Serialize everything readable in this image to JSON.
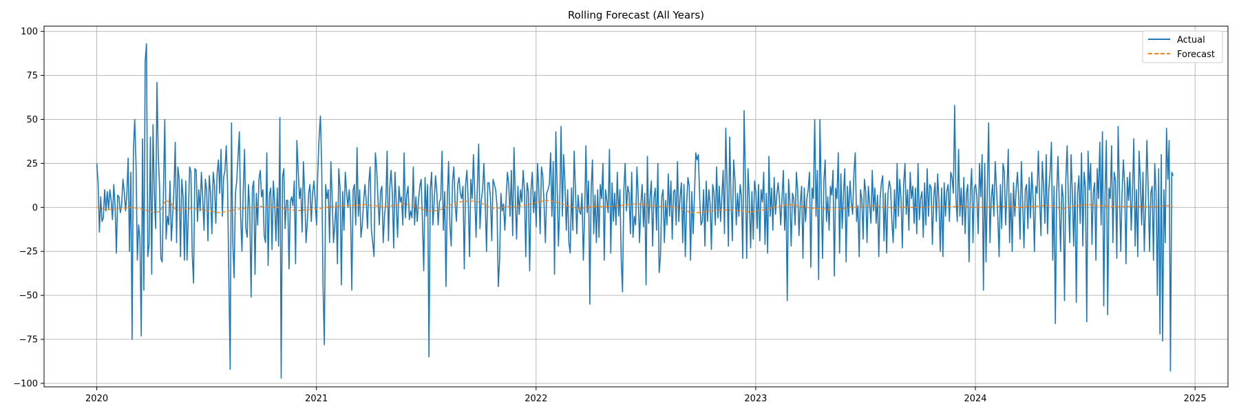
{
  "chart_data": {
    "type": "line",
    "title": "Rolling Forecast (All Years)",
    "xlabel": "",
    "ylabel": "",
    "x_range": [
      2019.76,
      2025.15
    ],
    "x_start": 2020.0,
    "x_end": 2024.9,
    "ylim": [
      -102,
      103
    ],
    "x_ticks": [
      {
        "value": 2020,
        "label": "2020"
      },
      {
        "value": 2021,
        "label": "2021"
      },
      {
        "value": 2022,
        "label": "2022"
      },
      {
        "value": 2023,
        "label": "2023"
      },
      {
        "value": 2024,
        "label": "2024"
      },
      {
        "value": 2025,
        "label": "2025"
      }
    ],
    "y_ticks": [
      {
        "value": 100,
        "label": "100"
      },
      {
        "value": 75,
        "label": "75"
      },
      {
        "value": 50,
        "label": "50"
      },
      {
        "value": 25,
        "label": "25"
      },
      {
        "value": 0,
        "label": "0"
      },
      {
        "value": -25,
        "label": "−25"
      },
      {
        "value": -50,
        "label": "−50"
      },
      {
        "value": -75,
        "label": "−75"
      },
      {
        "value": -100,
        "label": "−100"
      }
    ],
    "grid": true,
    "legend_position": "top-right",
    "series": [
      {
        "name": "Actual",
        "color": "#1f77b4",
        "style": "solid",
        "values": [
          25,
          14,
          -14,
          6,
          -8,
          -6,
          10,
          -2,
          9,
          -1,
          10,
          4,
          -7,
          13,
          1,
          -26,
          7,
          6,
          -3,
          1,
          16,
          9,
          -2,
          8,
          28,
          -25,
          20,
          -75,
          32,
          50,
          25,
          -30,
          -10,
          -18,
          -73,
          39,
          -47,
          83,
          93,
          -28,
          -21,
          40,
          -38,
          47,
          8,
          -12,
          71,
          30,
          12,
          -29,
          -31,
          10,
          50,
          -18,
          -5,
          -10,
          15,
          -19,
          -5,
          10,
          37,
          -20,
          23,
          16,
          -28,
          16,
          6,
          -30,
          15,
          -30,
          -5,
          23,
          20,
          -27,
          -43,
          22,
          21,
          -8,
          10,
          -2,
          20,
          5,
          -13,
          16,
          10,
          -19,
          18,
          8,
          -15,
          20,
          13,
          -9,
          19,
          27,
          8,
          33,
          -5,
          17,
          21,
          35,
          12,
          -41,
          -92,
          48,
          -20,
          -40,
          8,
          15,
          29,
          43,
          -5,
          -25,
          10,
          33,
          -12,
          -17,
          13,
          -3,
          -51,
          11,
          15,
          -38,
          8,
          -10,
          16,
          21,
          6,
          10,
          -16,
          -20,
          31,
          -33,
          7,
          11,
          -24,
          15,
          3,
          -19,
          11,
          -22,
          51,
          -97,
          17,
          22,
          -12,
          4,
          4,
          -35,
          3,
          6,
          1,
          15,
          -32,
          38,
          21,
          5,
          11,
          -14,
          26,
          7,
          -20,
          -8,
          8,
          13,
          -8,
          8,
          15,
          4,
          -10,
          20,
          40,
          52,
          22,
          -45,
          -78,
          13,
          5,
          10,
          -20,
          26,
          5,
          -20,
          -10,
          3,
          -32,
          22,
          11,
          -44,
          9,
          -13,
          20,
          9,
          0,
          10,
          -2,
          -47,
          10,
          13,
          -10,
          34,
          -5,
          10,
          -17,
          -10,
          3,
          13,
          4,
          -12,
          14,
          23,
          -13,
          -20,
          -28,
          31,
          22,
          5,
          -10,
          9,
          12,
          -20,
          -5,
          3,
          32,
          -19,
          11,
          21,
          8,
          -23,
          20,
          2,
          -17,
          12,
          3,
          6,
          -10,
          31,
          -6,
          7,
          12,
          -7,
          -2,
          -6,
          23,
          -10,
          6,
          -8,
          4,
          12,
          16,
          -8,
          -36,
          17,
          -5,
          13,
          -85,
          10,
          20,
          -10,
          3,
          18,
          9,
          -10,
          3,
          5,
          32,
          -13,
          9,
          -45,
          5,
          26,
          -10,
          -22,
          15,
          23,
          2,
          -8,
          13,
          17,
          8,
          5,
          12,
          -35,
          13,
          21,
          4,
          -28,
          16,
          5,
          30,
          7,
          -17,
          12,
          36,
          -12,
          4,
          10,
          25,
          3,
          -25,
          14,
          14,
          6,
          -19,
          16,
          13,
          10,
          1,
          -45,
          -30,
          8,
          -2,
          2,
          -13,
          5,
          20,
          13,
          -5,
          21,
          -16,
          34,
          6,
          -18,
          12,
          -4,
          10,
          3,
          21,
          10,
          -28,
          14,
          9,
          -36,
          10,
          20,
          -3,
          9,
          -11,
          25,
          10,
          -15,
          23,
          18,
          2,
          -20,
          8,
          10,
          13,
          31,
          -5,
          26,
          -38,
          43,
          12,
          -22,
          3,
          46,
          -5,
          30,
          13,
          -13,
          10,
          -20,
          -26,
          11,
          -13,
          32,
          10,
          -15,
          7,
          -2,
          -4,
          8,
          -30,
          -5,
          35,
          -3,
          15,
          -55,
          10,
          27,
          -15,
          7,
          -20,
          10,
          -17,
          13,
          5,
          25,
          -30,
          10,
          4,
          -3,
          33,
          -26,
          14,
          -8,
          8,
          -10,
          20,
          -5,
          10,
          -30,
          -48,
          10,
          25,
          -2,
          12,
          8,
          -15,
          20,
          -17,
          -5,
          -10,
          23,
          6,
          -20,
          2,
          13,
          -11,
          8,
          -44,
          29,
          -9,
          5,
          15,
          -22,
          5,
          11,
          -13,
          25,
          -37,
          -28,
          6,
          10,
          -20,
          4,
          -10,
          19,
          -5,
          15,
          -18,
          9,
          10,
          -10,
          26,
          -8,
          6,
          14,
          -20,
          13,
          -28,
          2,
          17,
          12,
          -30,
          9,
          -15,
          7,
          31,
          27,
          30,
          5,
          -10,
          -8,
          10,
          -22,
          15,
          -8,
          10,
          2,
          -24,
          13,
          8,
          -10,
          23,
          -6,
          12,
          -8,
          6,
          21,
          -15,
          45,
          12,
          -22,
          40,
          5,
          -19,
          27,
          16,
          -10,
          8,
          -5,
          13,
          6,
          -29,
          55,
          15,
          -29,
          22,
          5,
          -23,
          9,
          -18,
          15,
          9,
          -12,
          13,
          -19,
          10,
          3,
          20,
          -21,
          8,
          -26,
          29,
          -5,
          11,
          -13,
          17,
          -4,
          7,
          14,
          5,
          -10,
          5,
          21,
          -13,
          8,
          -53,
          16,
          4,
          -22,
          8,
          5,
          -10,
          20,
          9,
          -16,
          3,
          12,
          -29,
          11,
          -8,
          5,
          10,
          20,
          -34,
          11,
          5,
          50,
          -5,
          21,
          -41,
          50,
          7,
          -29,
          15,
          27,
          -8,
          6,
          -13,
          12,
          7,
          21,
          -39,
          11,
          5,
          31,
          -26,
          19,
          -12,
          8,
          22,
          -31,
          12,
          -5,
          15,
          3,
          -4,
          20,
          31,
          -8,
          1,
          -28,
          10,
          5,
          -18,
          16,
          9,
          -20,
          12,
          2,
          -9,
          21,
          -2,
          11,
          -9,
          7,
          -28,
          5,
          14,
          18,
          -19,
          8,
          -26,
          8,
          15,
          11,
          -8,
          -20,
          10,
          -12,
          25,
          -5,
          16,
          5,
          -23,
          13,
          25,
          -4,
          10,
          -13,
          20,
          5,
          12,
          -9,
          11,
          -15,
          25,
          -7,
          5,
          9,
          -17,
          14,
          -10,
          22,
          -5,
          13,
          11,
          -21,
          6,
          14,
          -8,
          19,
          3,
          -25,
          11,
          -28,
          14,
          -5,
          9,
          13,
          -8,
          20,
          17,
          8,
          58,
          5,
          -8,
          33,
          -5,
          11,
          -10,
          17,
          -15,
          8,
          13,
          -31,
          9,
          22,
          -20,
          11,
          13,
          6,
          -15,
          25,
          6,
          30,
          -47,
          25,
          -31,
          13,
          48,
          -20,
          5,
          13,
          -5,
          26,
          11,
          -6,
          -28,
          13,
          -12,
          25,
          20,
          -10,
          10,
          33,
          -20,
          8,
          -25,
          14,
          -5,
          10,
          20,
          6,
          -18,
          26,
          3,
          -23,
          10,
          13,
          -12,
          17,
          -6,
          20,
          5,
          -25,
          12,
          8,
          32,
          4,
          -16,
          26,
          12,
          -9,
          30,
          -15,
          10,
          20,
          37,
          -30,
          12,
          -66,
          8,
          29,
          3,
          -25,
          13,
          5,
          -53,
          16,
          35,
          4,
          -20,
          30,
          8,
          -22,
          14,
          -54,
          8,
          18,
          -9,
          31,
          -22,
          20,
          11,
          -65,
          32,
          10,
          25,
          -21,
          8,
          14,
          -30,
          22,
          5,
          37,
          -10,
          43,
          -56,
          8,
          38,
          -61,
          11,
          5,
          35,
          -20,
          20,
          15,
          -29,
          46,
          10,
          -25,
          8,
          27,
          12,
          -32,
          17,
          4,
          20,
          -13,
          10,
          39,
          -22,
          10,
          -28,
          32,
          15,
          -10,
          20,
          -25,
          3,
          38,
          10,
          -25,
          8,
          12,
          -30,
          25,
          9,
          -50,
          22,
          -72,
          30,
          -76,
          10,
          -20,
          45,
          16,
          38,
          -93,
          20,
          18
        ]
      },
      {
        "name": "Forecast",
        "color": "#ff7f0e",
        "style": "dashed",
        "values": [
          0,
          -0.5,
          -1.5,
          -1,
          -1,
          -0.5,
          -0.5,
          0,
          -0.5,
          -1,
          -1.5,
          -2.5,
          -3,
          -2,
          4,
          3,
          -1,
          -1.5,
          -1,
          -0.5,
          -1,
          -1,
          -1.5,
          -2,
          -2.5,
          -3,
          -2.5,
          -2,
          -1.5,
          -1,
          -0.5,
          -0.5,
          0,
          0.5,
          0.5,
          0,
          0,
          0,
          -0.5,
          -1,
          -1.5,
          -2,
          -1.5,
          -1.5,
          -1,
          -1,
          -0.5,
          0,
          0.5,
          0.5,
          1,
          1,
          1,
          1,
          1.5,
          1.5,
          1,
          1,
          0.5,
          0.5,
          1,
          1,
          1.5,
          2,
          1.5,
          0.5,
          -0.5,
          -1.5,
          -2,
          -2,
          -1.5,
          -0.5,
          1,
          2,
          3,
          3.5,
          3.5,
          3.5,
          3,
          2,
          0.5,
          -0.5,
          -0.5,
          0,
          0.5,
          0.5,
          0.5,
          1,
          1.5,
          2,
          3,
          3.5,
          4,
          3.5,
          3,
          2,
          1,
          0.5,
          -0.5,
          -0.5,
          0,
          0.5,
          0.5,
          0.5,
          0.5,
          0.5,
          1,
          1,
          1.5,
          1.5,
          2,
          2,
          1.5,
          1,
          1,
          0.5,
          0.5,
          0.5,
          0,
          -0.5,
          -1.5,
          -2.5,
          -3,
          -3,
          -2.5,
          -2,
          -2,
          -1.5,
          -1.5,
          -1.5,
          -1.5,
          -2,
          -2,
          -2.5,
          -2.5,
          -2,
          -1.5,
          -1,
          0,
          0.5,
          1,
          1.5,
          1.5,
          1,
          0.5,
          0,
          -0.5,
          -0.5,
          -1,
          -1,
          -1.5,
          -1,
          -1,
          -0.5,
          0,
          0,
          0.5,
          0.5,
          1,
          1,
          0.5,
          0,
          0,
          -0.5,
          0,
          0,
          0,
          0,
          0,
          0,
          0,
          0.5,
          0.5,
          0.5,
          0.5,
          0.5,
          0.5,
          0.5,
          0.5,
          0,
          0,
          0,
          0,
          0.5,
          0.5,
          0.5,
          0.5,
          0.5,
          0,
          0,
          0.5,
          0.5,
          0.5,
          1,
          1,
          1,
          0.5,
          -1,
          -0.5,
          0.5,
          1,
          1,
          1.5,
          1.5,
          1,
          1,
          1,
          0.5,
          0.5,
          0.5,
          0.5,
          0.5,
          0.5,
          0.5,
          0,
          0.5,
          0.5,
          0.5,
          1,
          1,
          0.5
        ]
      }
    ]
  }
}
